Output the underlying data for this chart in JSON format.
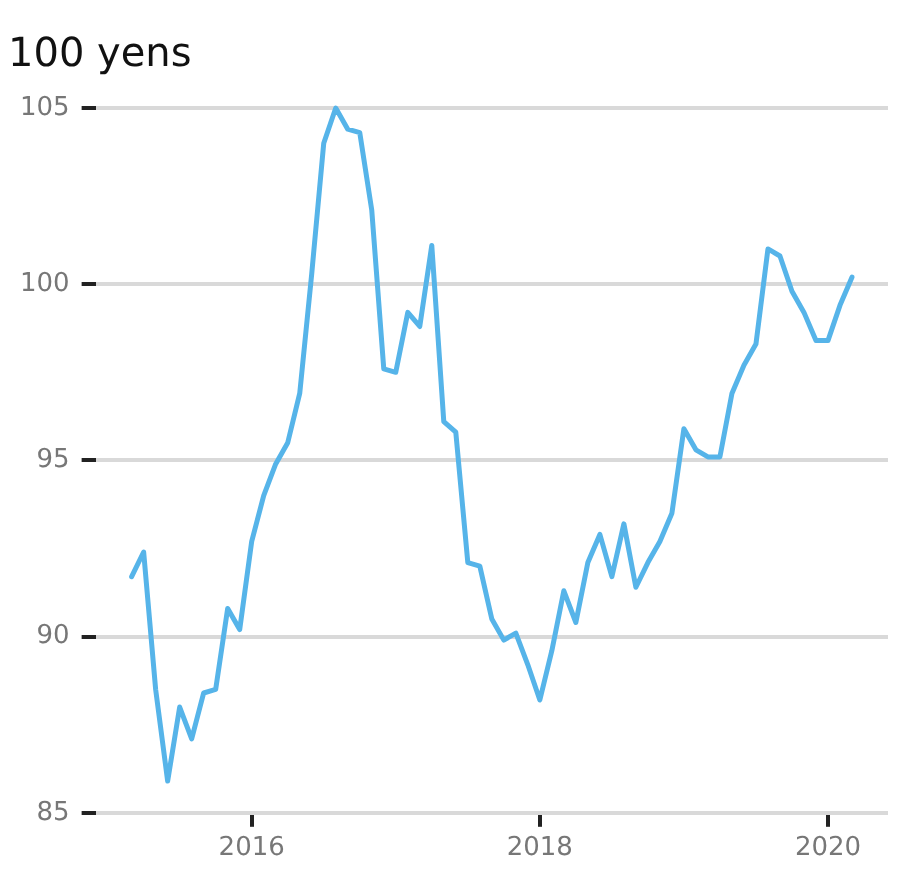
{
  "chart_data": {
    "type": "line",
    "title": "100 yens",
    "x": [
      "2015-03",
      "2015-04",
      "2015-05",
      "2015-06",
      "2015-07",
      "2015-08",
      "2015-09",
      "2015-10",
      "2015-11",
      "2015-12",
      "2016-01",
      "2016-02",
      "2016-03",
      "2016-04",
      "2016-05",
      "2016-06",
      "2016-07",
      "2016-08",
      "2016-09",
      "2016-10",
      "2016-11",
      "2016-12",
      "2017-01",
      "2017-02",
      "2017-03",
      "2017-04",
      "2017-05",
      "2017-06",
      "2017-07",
      "2017-08",
      "2017-09",
      "2017-10",
      "2017-11",
      "2017-12",
      "2018-01",
      "2018-02",
      "2018-03",
      "2018-04",
      "2018-05",
      "2018-06",
      "2018-07",
      "2018-08",
      "2018-09",
      "2018-10",
      "2018-11",
      "2018-12",
      "2019-01",
      "2019-02",
      "2019-03",
      "2019-04",
      "2019-05",
      "2019-06",
      "2019-07",
      "2019-08",
      "2019-09",
      "2019-10",
      "2019-11",
      "2019-12",
      "2020-01",
      "2020-02",
      "2020-03"
    ],
    "series": [
      {
        "color": "#56b4e9",
        "values": [
          91.7,
          92.4,
          88.5,
          85.9,
          88.0,
          87.1,
          88.4,
          88.5,
          90.8,
          90.2,
          92.7,
          94.0,
          94.9,
          95.5,
          96.9,
          100.3,
          104.0,
          105.0,
          104.4,
          104.3,
          102.1,
          97.6,
          97.5,
          99.2,
          98.8,
          101.1,
          96.1,
          95.8,
          92.1,
          92.0,
          90.5,
          89.9,
          90.1,
          89.2,
          88.2,
          89.6,
          91.3,
          90.4,
          92.1,
          92.9,
          91.7,
          93.2,
          91.4,
          92.1,
          92.7,
          93.5,
          95.9,
          95.3,
          95.1,
          95.1,
          96.9,
          97.7,
          98.3,
          101.0,
          100.8,
          99.8,
          99.2,
          98.4,
          98.4,
          99.4,
          100.2
        ]
      }
    ],
    "xlim": [
      "2014-12",
      "2020-06"
    ],
    "xticks": [
      "2016",
      "2018",
      "2020"
    ],
    "ylim": [
      85,
      105
    ],
    "yticks": [
      85,
      90,
      95,
      100,
      105
    ],
    "grid": "y",
    "legend": false,
    "marker": "none",
    "line_style": "solid"
  }
}
